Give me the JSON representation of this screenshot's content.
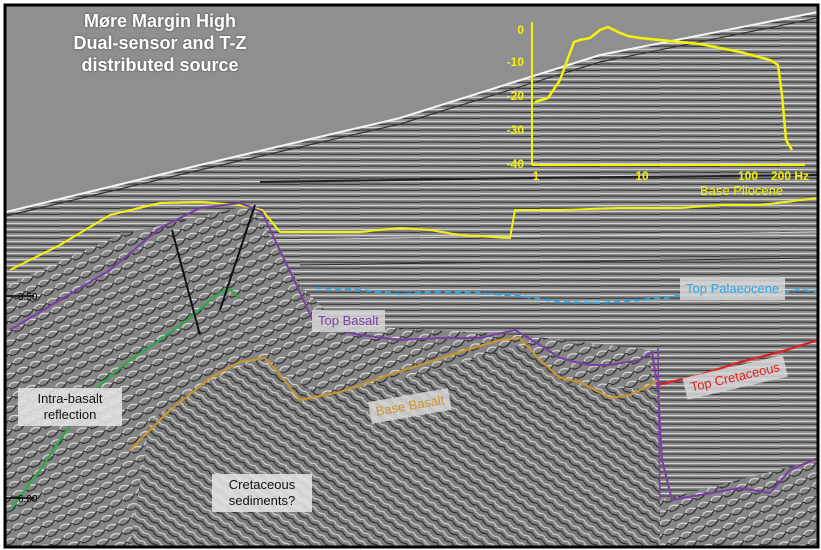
{
  "title": {
    "line1": "Møre Margin High",
    "line2": "Dual-sensor and T-Z",
    "line3": "distributed source"
  },
  "depth_labels": {
    "upper": "3.50",
    "lower": "6.00"
  },
  "spectrum": {
    "y_ticks": [
      "0",
      "-10",
      "-20",
      "-30",
      "-40"
    ],
    "x_ticks": [
      "1",
      "10",
      "100",
      "200 Hz"
    ],
    "color": "#f2f20a"
  },
  "horizons": {
    "base_pliocene": "Base Pliocene",
    "top_palaeocene": "Top Palaeocene",
    "top_basalt": "Top Basalt",
    "top_cretaceous": "Top Cretaceous",
    "base_basalt": "Base Basalt"
  },
  "annotations": {
    "intra_line1": "Intra-basalt",
    "intra_line2": "reflection",
    "cret_line1": "Cretaceous",
    "cret_line2": "sediments?"
  },
  "colors": {
    "base_pliocene": "#f2f20a",
    "top_palaeocene": "#2ea6e6",
    "top_basalt": "#7a3fa6",
    "top_cretaceous": "#e02020",
    "base_basalt": "#c9962b",
    "intra_basalt": "#2ea84a"
  }
}
